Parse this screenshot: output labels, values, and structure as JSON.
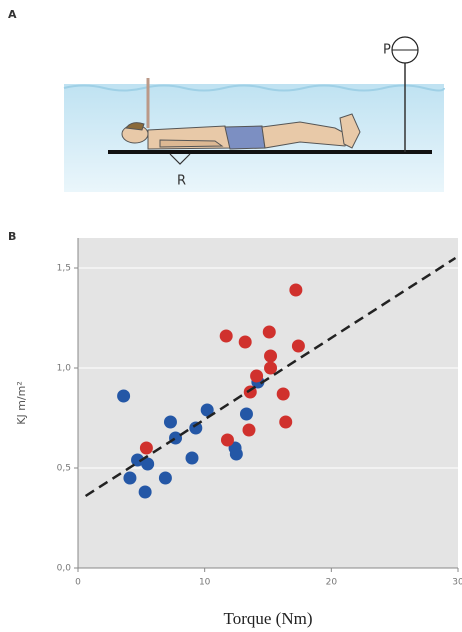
{
  "panel_a": {
    "label": "A",
    "pump_label": "P",
    "rest_label": "R"
  },
  "chart_data": {
    "type": "scatter",
    "panel_label": "B",
    "x_label": "Torque (Nm)",
    "y_label": "KJ m/m²",
    "xlim": [
      0,
      30
    ],
    "xticks": [
      0,
      10,
      20,
      30
    ],
    "ylim": [
      0,
      1.65
    ],
    "yticks": [
      {
        "value": 0,
        "label": "0,0"
      },
      {
        "value": 0.5,
        "label": "0,5"
      },
      {
        "value": 1.0,
        "label": "1,0"
      },
      {
        "value": 1.5,
        "label": "1,5"
      }
    ],
    "grid": true,
    "series": [
      {
        "color": "#2457a6",
        "x": [
          3.6,
          4.1,
          4.7,
          5.5,
          5.3,
          6.9,
          7.3,
          7.7,
          9.0,
          9.3,
          10.2,
          12.4,
          12.5,
          13.3,
          14.2
        ],
        "y": [
          0.86,
          0.45,
          0.54,
          0.52,
          0.38,
          0.45,
          0.73,
          0.65,
          0.55,
          0.7,
          0.79,
          0.6,
          0.57,
          0.77,
          0.93
        ]
      },
      {
        "color": "#d0312d",
        "x": [
          5.4,
          11.7,
          11.8,
          13.2,
          13.5,
          13.6,
          14.1,
          15.1,
          15.2,
          15.2,
          16.2,
          16.4,
          17.2,
          17.4
        ],
        "y": [
          0.6,
          1.16,
          0.64,
          1.13,
          0.69,
          0.88,
          0.96,
          1.18,
          1.06,
          1.0,
          0.87,
          0.73,
          1.39,
          1.11
        ]
      }
    ],
    "trend_line": {
      "color": "#222222",
      "x": [
        0.6,
        29.8
      ],
      "y": [
        0.36,
        1.55
      ]
    }
  }
}
